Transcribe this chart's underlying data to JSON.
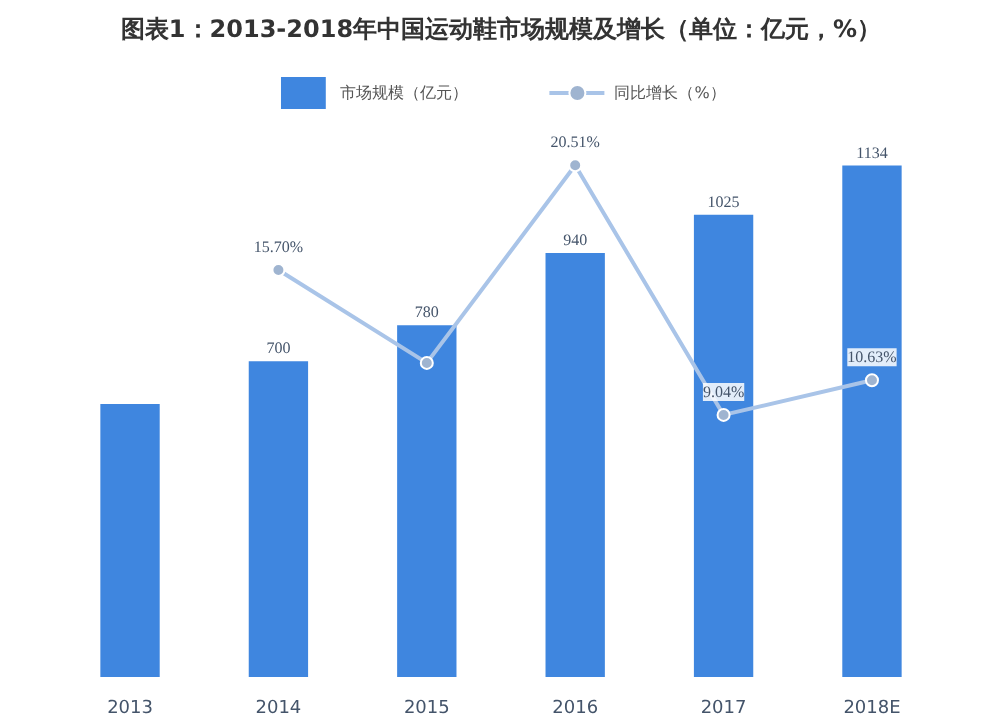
{
  "chart_data": {
    "type": "bar",
    "title": "图表1：2013-2018年中国运动鞋市场规模及增长（单位：亿元，%）",
    "categories": [
      "2013",
      "2014",
      "2015",
      "2016",
      "2017",
      "2018E"
    ],
    "series": [
      {
        "name": "市场规模（亿元）",
        "color": "#3f86df",
        "values": [
          605,
          700,
          780,
          940,
          1025,
          1134
        ],
        "value_labels": [
          null,
          "700",
          "780",
          "940",
          "1025",
          "1134"
        ]
      },
      {
        "name": "同比增长（%）",
        "type": "line",
        "axis": "y2",
        "color": "#a9c4e8",
        "values": [
          null,
          15.7,
          11.43,
          20.51,
          9.04,
          10.63
        ],
        "value_labels": [
          null,
          "15.70%",
          null,
          "20.51%",
          "9.04%",
          "10.63%"
        ]
      }
    ],
    "legend": "top",
    "marker": "circle",
    "tick_labels": "x"
  }
}
